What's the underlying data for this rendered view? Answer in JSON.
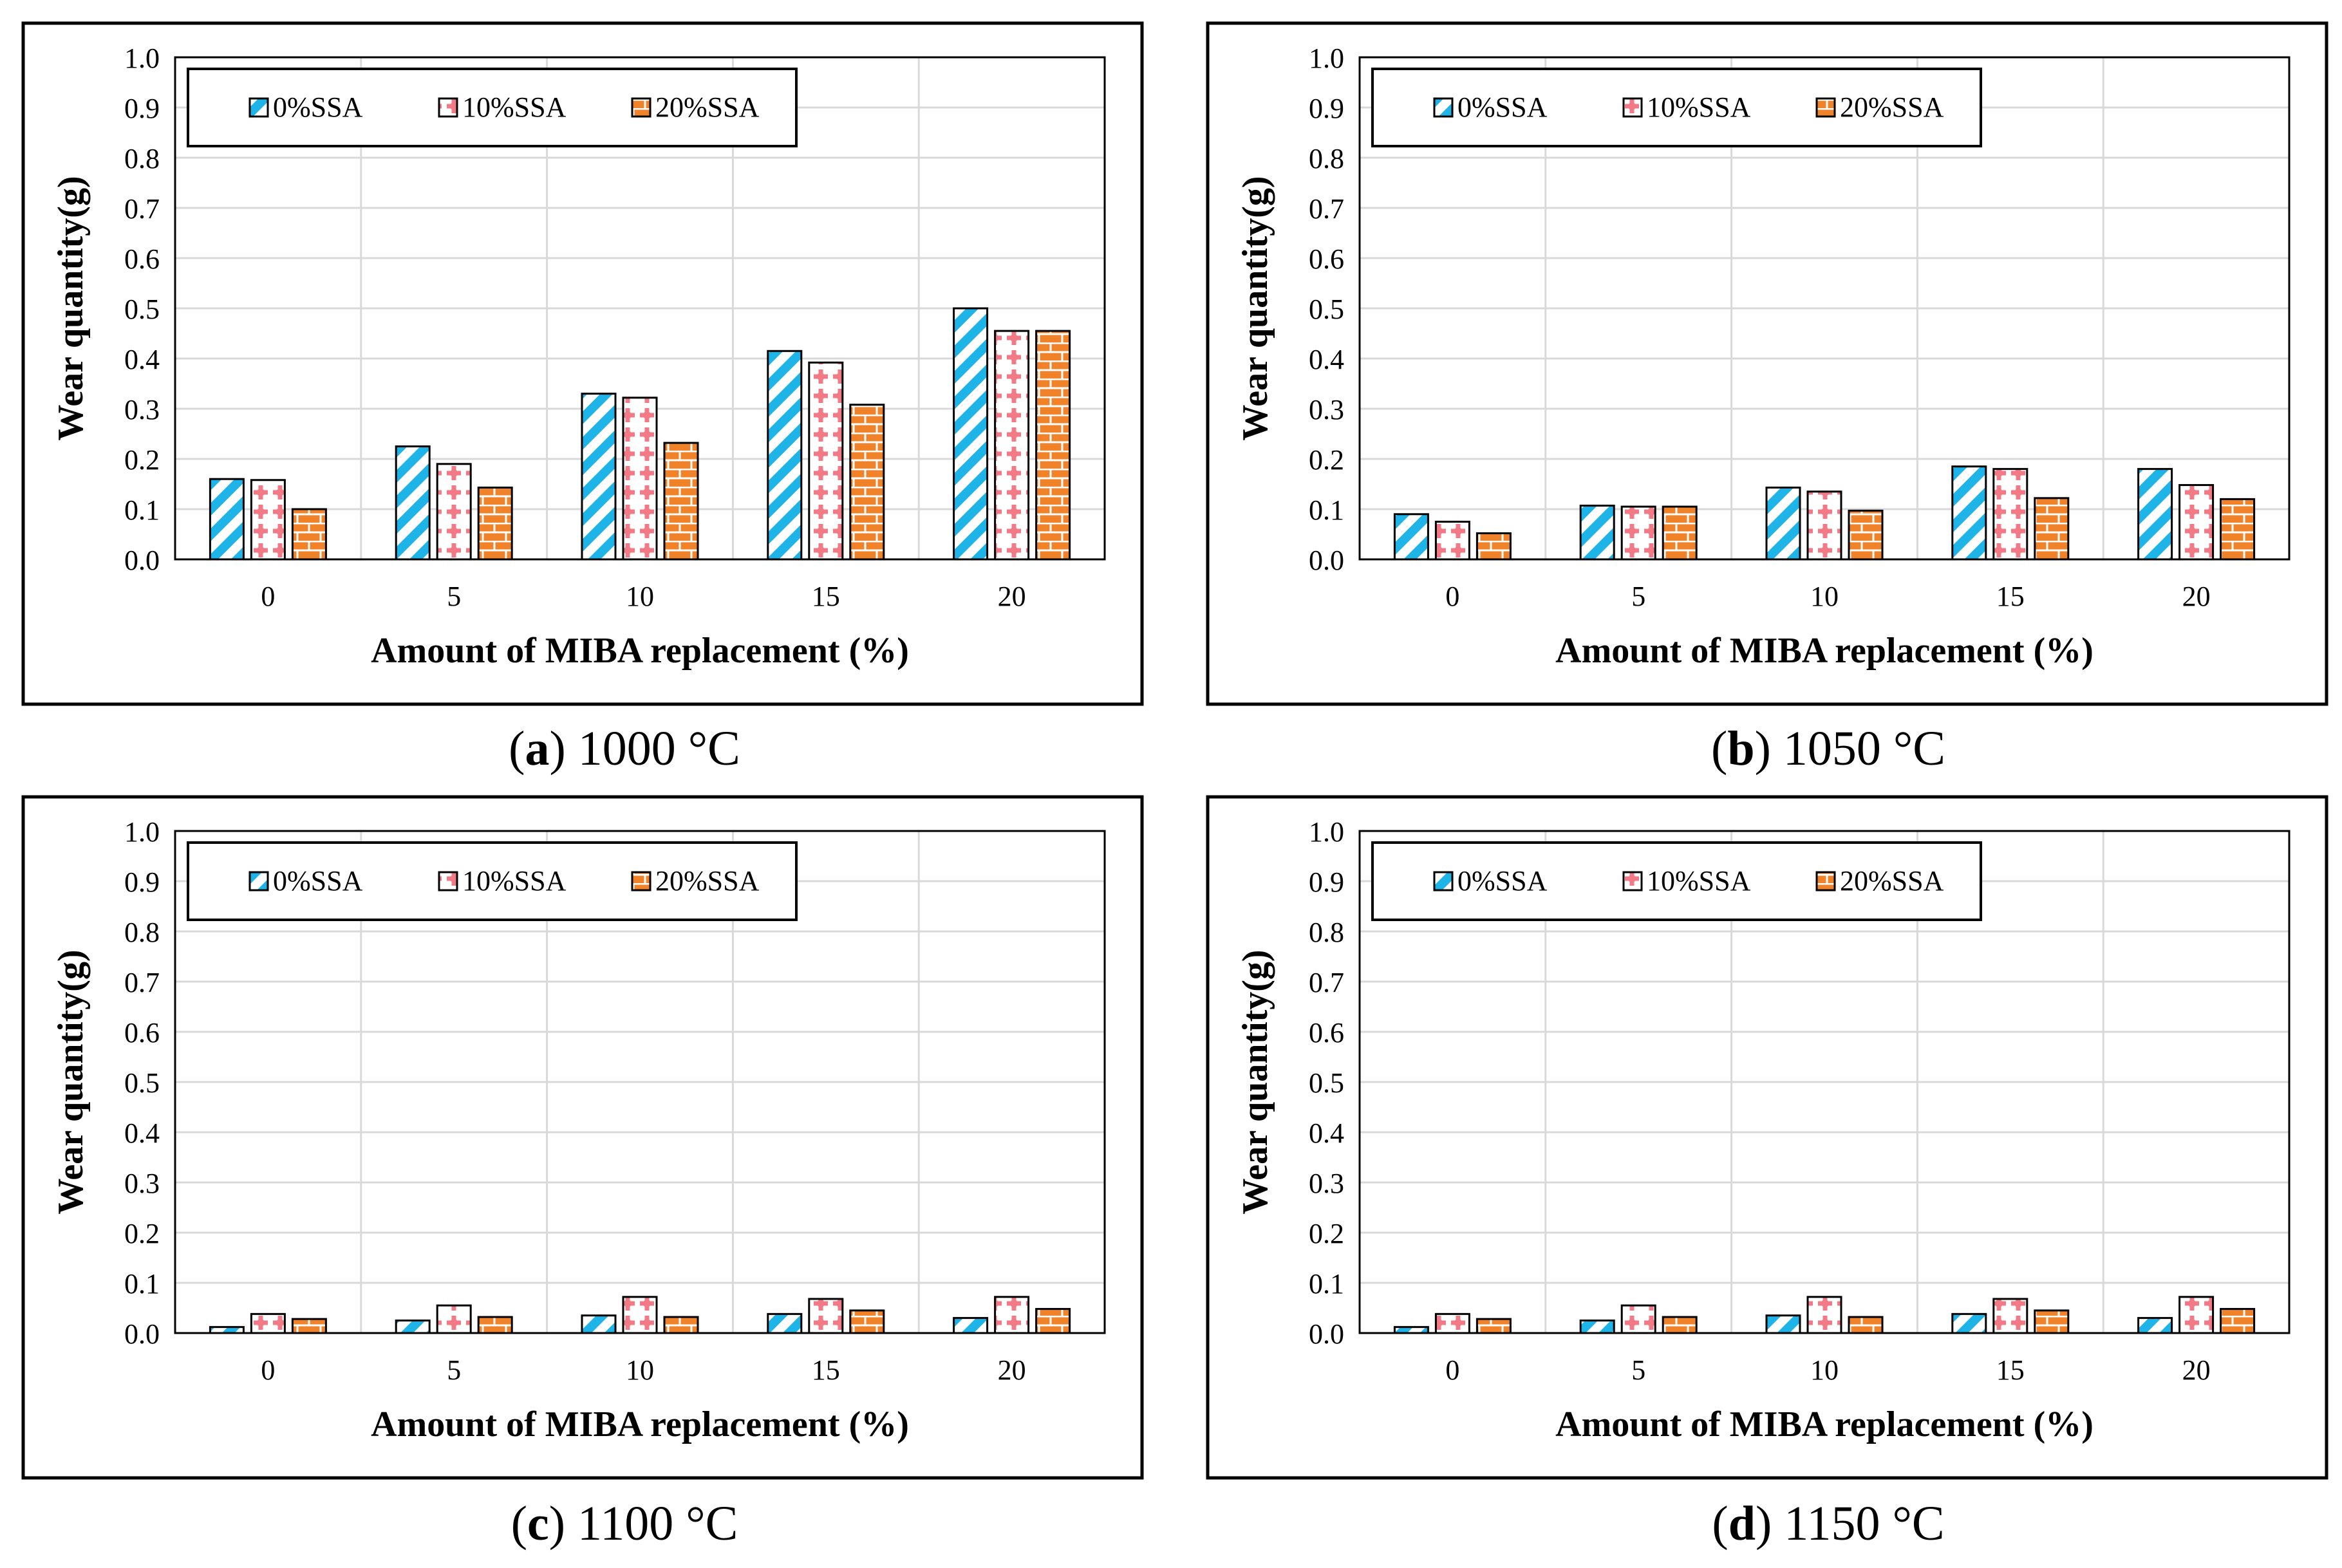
{
  "colors": {
    "series0": "#1fb4e8",
    "series1": "#f27a86",
    "series2": "#f0832a",
    "grid": "#d9d9d9",
    "frame": "#000000"
  },
  "chart_data": [
    {
      "type": "bar",
      "panel_letter": "a",
      "caption_rest": " 1000 °C",
      "xlabel": "Amount of MIBA replacement (%)",
      "ylabel": "Wear quantity(g)",
      "ylim": [
        0,
        1.0
      ],
      "yticks": [
        "0.0",
        "0.1",
        "0.2",
        "0.3",
        "0.4",
        "0.5",
        "0.6",
        "0.7",
        "0.8",
        "0.9",
        "1.0"
      ],
      "categories": [
        "0",
        "5",
        "10",
        "15",
        "20"
      ],
      "legend_position": "top-left",
      "series": [
        {
          "name": "0%SSA",
          "values": [
            0.16,
            0.225,
            0.33,
            0.415,
            0.5
          ]
        },
        {
          "name": "10%SSA",
          "values": [
            0.158,
            0.19,
            0.322,
            0.392,
            0.455
          ]
        },
        {
          "name": "20%SSA",
          "values": [
            0.1,
            0.143,
            0.232,
            0.308,
            0.455
          ]
        }
      ]
    },
    {
      "type": "bar",
      "panel_letter": "b",
      "caption_rest": " 1050 °C",
      "xlabel": "Amount of MIBA replacement (%)",
      "ylabel": "Wear quantity(g)",
      "ylim": [
        0,
        1.0
      ],
      "yticks": [
        "0.0",
        "0.1",
        "0.2",
        "0.3",
        "0.4",
        "0.5",
        "0.6",
        "0.7",
        "0.8",
        "0.9",
        "1.0"
      ],
      "categories": [
        "0",
        "5",
        "10",
        "15",
        "20"
      ],
      "legend_position": "top-left",
      "series": [
        {
          "name": "0%SSA",
          "values": [
            0.09,
            0.107,
            0.143,
            0.185,
            0.18
          ]
        },
        {
          "name": "10%SSA",
          "values": [
            0.075,
            0.105,
            0.135,
            0.18,
            0.148
          ]
        },
        {
          "name": "20%SSA",
          "values": [
            0.052,
            0.105,
            0.097,
            0.122,
            0.12
          ]
        }
      ]
    },
    {
      "type": "bar",
      "panel_letter": "c",
      "caption_rest": " 1100 °C",
      "xlabel": "Amount of MIBA replacement (%)",
      "ylabel": "Wear quantity(g)",
      "ylim": [
        0,
        1.0
      ],
      "yticks": [
        "0.0",
        "0.1",
        "0.2",
        "0.3",
        "0.4",
        "0.5",
        "0.6",
        "0.7",
        "0.8",
        "0.9",
        "1.0"
      ],
      "categories": [
        "0",
        "5",
        "10",
        "15",
        "20"
      ],
      "legend_position": "top-left",
      "series": [
        {
          "name": "0%SSA",
          "values": [
            0.012,
            0.025,
            0.035,
            0.038,
            0.03
          ]
        },
        {
          "name": "10%SSA",
          "values": [
            0.038,
            0.055,
            0.072,
            0.068,
            0.072
          ]
        },
        {
          "name": "20%SSA",
          "values": [
            0.028,
            0.032,
            0.032,
            0.045,
            0.048
          ]
        }
      ]
    },
    {
      "type": "bar",
      "panel_letter": "d",
      "caption_rest": " 1150 °C",
      "xlabel": "Amount of MIBA replacement (%)",
      "ylabel": "Wear quantity(g)",
      "ylim": [
        0,
        1.0
      ],
      "yticks": [
        "0.0",
        "0.1",
        "0.2",
        "0.3",
        "0.4",
        "0.5",
        "0.6",
        "0.7",
        "0.8",
        "0.9",
        "1.0"
      ],
      "categories": [
        "0",
        "5",
        "10",
        "15",
        "20"
      ],
      "legend_position": "top-left",
      "series": [
        {
          "name": "0%SSA",
          "values": [
            0.012,
            0.025,
            0.035,
            0.038,
            0.03
          ]
        },
        {
          "name": "10%SSA",
          "values": [
            0.038,
            0.055,
            0.072,
            0.068,
            0.072
          ]
        },
        {
          "name": "20%SSA",
          "values": [
            0.028,
            0.032,
            0.032,
            0.045,
            0.048
          ]
        }
      ]
    }
  ]
}
